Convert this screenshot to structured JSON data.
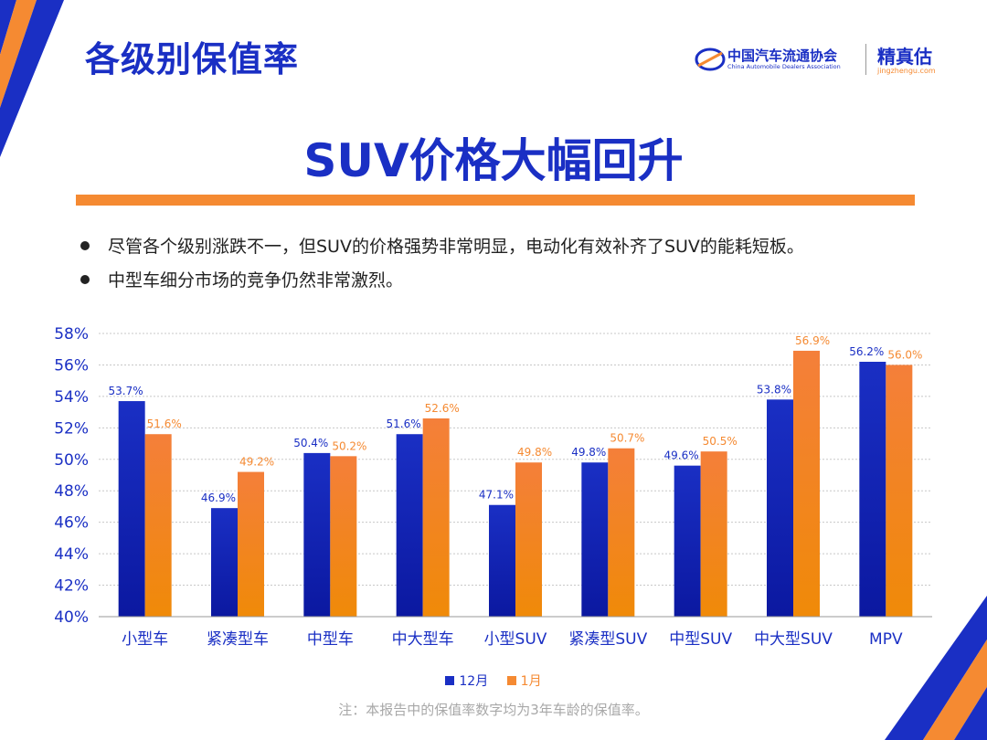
{
  "header": {
    "page_title": "各级别保值率",
    "logo_org_cn": "中国汽车流通协会",
    "logo_org_en": "China Automobile Dealers Association",
    "logo_brand": "精真估",
    "logo_brand_url": "jingzhengu.com"
  },
  "headline": "SUV价格大幅回升",
  "bullets": [
    "尽管各个级别涨跌不一，但SUV的价格强势非常明显，电动化有效补齐了SUV的能耗短板。",
    "中型车细分市场的竞争仍然非常激烈。"
  ],
  "footnote": "注：本报告中的保值率数字均为3年车龄的保值率。",
  "colors": {
    "accent_blue": "#1a2fc4",
    "accent_orange": "#f58a32"
  },
  "chart_data": {
    "type": "bar",
    "categories": [
      "小型车",
      "紧凑型车",
      "中型车",
      "中大型车",
      "小型SUV",
      "紧凑型SUV",
      "中型SUV",
      "中大型SUV",
      "MPV"
    ],
    "series": [
      {
        "name": "12月",
        "values": [
          53.7,
          46.9,
          50.4,
          51.6,
          47.1,
          49.8,
          49.6,
          53.8,
          56.2
        ],
        "labels": [
          "53.7%",
          "46.9%",
          "50.4%",
          "51.6%",
          "47.1%",
          "49.8%",
          "49.6%",
          "53.8%",
          "56.2%"
        ],
        "color": "#1a2fc4"
      },
      {
        "name": "1月",
        "values": [
          51.6,
          49.2,
          50.2,
          52.6,
          49.8,
          50.7,
          50.5,
          56.9,
          56.0
        ],
        "labels": [
          "51.6%",
          "49.2%",
          "50.2%",
          "52.6%",
          "49.8%",
          "50.7%",
          "50.5%",
          "56.9%",
          "56.0%"
        ],
        "color": "#f58a32"
      }
    ],
    "yticks": [
      "58%",
      "56%",
      "54%",
      "52%",
      "50%",
      "48%",
      "46%",
      "44%",
      "42%",
      "40%"
    ],
    "ytick_values": [
      58,
      56,
      54,
      52,
      50,
      48,
      46,
      44,
      42,
      40
    ],
    "ylim": [
      40,
      58
    ],
    "grid": true,
    "legend_position": "bottom-center"
  }
}
